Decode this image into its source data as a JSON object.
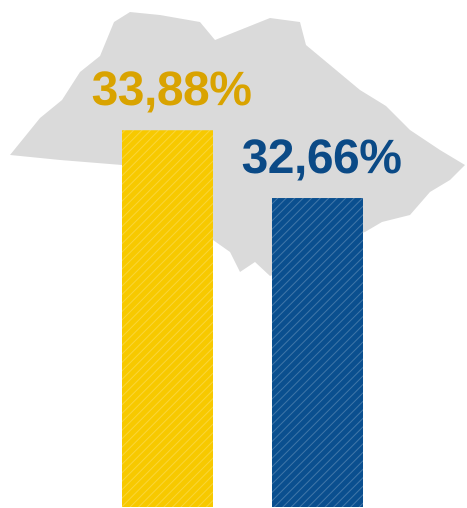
{
  "chart_data": {
    "type": "bar",
    "values": [
      33.88,
      32.66
    ],
    "value_labels": [
      "33,88%",
      "32,66%"
    ],
    "colors": [
      "#f7c900",
      "#0a4f8f"
    ],
    "label_colors": [
      "#d9a300",
      "#0b4a86"
    ],
    "ylim": [
      27.1,
      35.0
    ]
  }
}
